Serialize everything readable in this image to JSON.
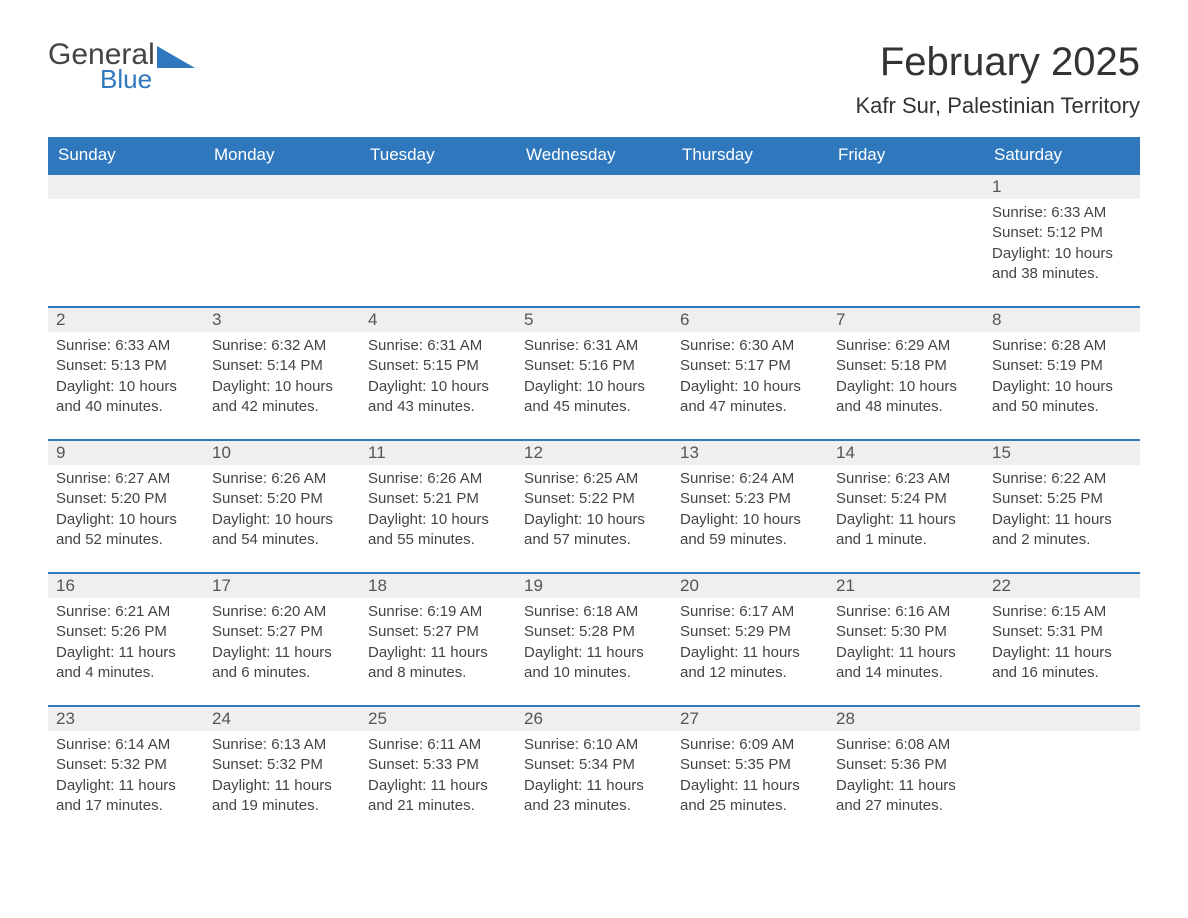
{
  "logo": {
    "general": "General",
    "blue": "Blue"
  },
  "title": "February 2025",
  "location": "Kafr Sur, Palestinian Territory",
  "colors": {
    "header_bg": "#2f78bd",
    "header_text": "#ffffff",
    "daynum_bg": "#efefef",
    "border_top": "#2f78bd",
    "body_text": "#444444",
    "title_text": "#333333"
  },
  "weekdays": [
    "Sunday",
    "Monday",
    "Tuesday",
    "Wednesday",
    "Thursday",
    "Friday",
    "Saturday"
  ],
  "weeks": [
    [
      null,
      null,
      null,
      null,
      null,
      null,
      {
        "d": "1",
        "sr": "Sunrise: 6:33 AM",
        "ss": "Sunset: 5:12 PM",
        "dl": "Daylight: 10 hours and 38 minutes."
      }
    ],
    [
      {
        "d": "2",
        "sr": "Sunrise: 6:33 AM",
        "ss": "Sunset: 5:13 PM",
        "dl": "Daylight: 10 hours and 40 minutes."
      },
      {
        "d": "3",
        "sr": "Sunrise: 6:32 AM",
        "ss": "Sunset: 5:14 PM",
        "dl": "Daylight: 10 hours and 42 minutes."
      },
      {
        "d": "4",
        "sr": "Sunrise: 6:31 AM",
        "ss": "Sunset: 5:15 PM",
        "dl": "Daylight: 10 hours and 43 minutes."
      },
      {
        "d": "5",
        "sr": "Sunrise: 6:31 AM",
        "ss": "Sunset: 5:16 PM",
        "dl": "Daylight: 10 hours and 45 minutes."
      },
      {
        "d": "6",
        "sr": "Sunrise: 6:30 AM",
        "ss": "Sunset: 5:17 PM",
        "dl": "Daylight: 10 hours and 47 minutes."
      },
      {
        "d": "7",
        "sr": "Sunrise: 6:29 AM",
        "ss": "Sunset: 5:18 PM",
        "dl": "Daylight: 10 hours and 48 minutes."
      },
      {
        "d": "8",
        "sr": "Sunrise: 6:28 AM",
        "ss": "Sunset: 5:19 PM",
        "dl": "Daylight: 10 hours and 50 minutes."
      }
    ],
    [
      {
        "d": "9",
        "sr": "Sunrise: 6:27 AM",
        "ss": "Sunset: 5:20 PM",
        "dl": "Daylight: 10 hours and 52 minutes."
      },
      {
        "d": "10",
        "sr": "Sunrise: 6:26 AM",
        "ss": "Sunset: 5:20 PM",
        "dl": "Daylight: 10 hours and 54 minutes."
      },
      {
        "d": "11",
        "sr": "Sunrise: 6:26 AM",
        "ss": "Sunset: 5:21 PM",
        "dl": "Daylight: 10 hours and 55 minutes."
      },
      {
        "d": "12",
        "sr": "Sunrise: 6:25 AM",
        "ss": "Sunset: 5:22 PM",
        "dl": "Daylight: 10 hours and 57 minutes."
      },
      {
        "d": "13",
        "sr": "Sunrise: 6:24 AM",
        "ss": "Sunset: 5:23 PM",
        "dl": "Daylight: 10 hours and 59 minutes."
      },
      {
        "d": "14",
        "sr": "Sunrise: 6:23 AM",
        "ss": "Sunset: 5:24 PM",
        "dl": "Daylight: 11 hours and 1 minute."
      },
      {
        "d": "15",
        "sr": "Sunrise: 6:22 AM",
        "ss": "Sunset: 5:25 PM",
        "dl": "Daylight: 11 hours and 2 minutes."
      }
    ],
    [
      {
        "d": "16",
        "sr": "Sunrise: 6:21 AM",
        "ss": "Sunset: 5:26 PM",
        "dl": "Daylight: 11 hours and 4 minutes."
      },
      {
        "d": "17",
        "sr": "Sunrise: 6:20 AM",
        "ss": "Sunset: 5:27 PM",
        "dl": "Daylight: 11 hours and 6 minutes."
      },
      {
        "d": "18",
        "sr": "Sunrise: 6:19 AM",
        "ss": "Sunset: 5:27 PM",
        "dl": "Daylight: 11 hours and 8 minutes."
      },
      {
        "d": "19",
        "sr": "Sunrise: 6:18 AM",
        "ss": "Sunset: 5:28 PM",
        "dl": "Daylight: 11 hours and 10 minutes."
      },
      {
        "d": "20",
        "sr": "Sunrise: 6:17 AM",
        "ss": "Sunset: 5:29 PM",
        "dl": "Daylight: 11 hours and 12 minutes."
      },
      {
        "d": "21",
        "sr": "Sunrise: 6:16 AM",
        "ss": "Sunset: 5:30 PM",
        "dl": "Daylight: 11 hours and 14 minutes."
      },
      {
        "d": "22",
        "sr": "Sunrise: 6:15 AM",
        "ss": "Sunset: 5:31 PM",
        "dl": "Daylight: 11 hours and 16 minutes."
      }
    ],
    [
      {
        "d": "23",
        "sr": "Sunrise: 6:14 AM",
        "ss": "Sunset: 5:32 PM",
        "dl": "Daylight: 11 hours and 17 minutes."
      },
      {
        "d": "24",
        "sr": "Sunrise: 6:13 AM",
        "ss": "Sunset: 5:32 PM",
        "dl": "Daylight: 11 hours and 19 minutes."
      },
      {
        "d": "25",
        "sr": "Sunrise: 6:11 AM",
        "ss": "Sunset: 5:33 PM",
        "dl": "Daylight: 11 hours and 21 minutes."
      },
      {
        "d": "26",
        "sr": "Sunrise: 6:10 AM",
        "ss": "Sunset: 5:34 PM",
        "dl": "Daylight: 11 hours and 23 minutes."
      },
      {
        "d": "27",
        "sr": "Sunrise: 6:09 AM",
        "ss": "Sunset: 5:35 PM",
        "dl": "Daylight: 11 hours and 25 minutes."
      },
      {
        "d": "28",
        "sr": "Sunrise: 6:08 AM",
        "ss": "Sunset: 5:36 PM",
        "dl": "Daylight: 11 hours and 27 minutes."
      },
      null
    ]
  ]
}
